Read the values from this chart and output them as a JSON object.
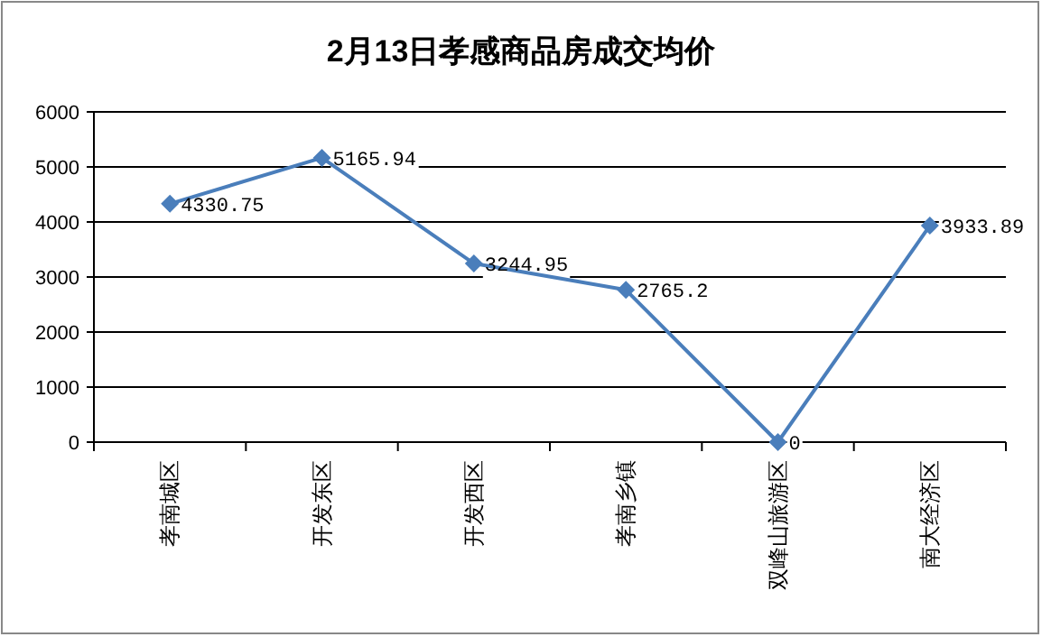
{
  "chart_data": {
    "type": "line",
    "title": "2月13日孝感商品房成交均价",
    "categories": [
      "孝南城区",
      "开发东区",
      "开发西区",
      "孝南乡镇",
      "双峰山旅游区",
      "南大经济区"
    ],
    "series": [
      {
        "color": "#4a7ebb",
        "values": [
          4330.75,
          5165.94,
          3244.95,
          2765.2,
          0,
          3933.89
        ]
      }
    ],
    "ylim": [
      0,
      6000
    ],
    "yticks": [
      0,
      1000,
      2000,
      3000,
      4000,
      5000,
      6000
    ],
    "grid": "y",
    "marker": "diamond",
    "data_labels": true
  }
}
